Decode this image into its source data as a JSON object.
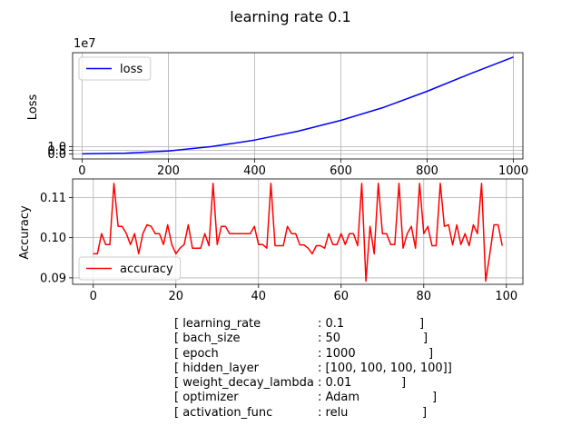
{
  "figure": {
    "title": "learning rate 0.1"
  },
  "chart_data": [
    {
      "type": "line",
      "title": "",
      "xlabel": "",
      "ylabel": "Loss",
      "scale_label": "1e7",
      "xlim": [
        -22,
        1022
      ],
      "ylim": [
        -0.7,
        13.9
      ],
      "x_ticks": [
        "0",
        "200",
        "400",
        "600",
        "800",
        "1000"
      ],
      "y_ticks": [
        "0.0",
        "0.5",
        "1.0"
      ],
      "grid": true,
      "legend": "top-left",
      "series": [
        {
          "name": "loss",
          "color": "#0000ff",
          "x": [
            0,
            100,
            200,
            300,
            400,
            500,
            600,
            700,
            800,
            900,
            1000
          ],
          "y": [
            0.0,
            0.1,
            0.4,
            1.0,
            1.9,
            3.1,
            4.6,
            6.4,
            8.6,
            11.0,
            13.3
          ]
        }
      ]
    },
    {
      "type": "line",
      "title": "",
      "xlabel": "",
      "ylabel": "Accuracy",
      "xlim": [
        -5,
        104
      ],
      "ylim": [
        0.0884,
        0.1146
      ],
      "x_ticks": [
        "0",
        "20",
        "40",
        "60",
        "80",
        "100"
      ],
      "y_ticks": [
        "0.09",
        "0.10",
        "0.11"
      ],
      "grid": true,
      "legend": "bottom-left",
      "series": [
        {
          "name": "accuracy",
          "color": "#ff0000",
          "x": [
            0,
            1,
            2,
            3,
            4,
            5,
            6,
            7,
            8,
            9,
            10,
            11,
            12,
            13,
            14,
            15,
            16,
            17,
            18,
            19,
            20,
            21,
            22,
            23,
            24,
            25,
            26,
            27,
            28,
            29,
            30,
            31,
            32,
            33,
            34,
            35,
            36,
            37,
            38,
            39,
            40,
            41,
            42,
            43,
            44,
            45,
            46,
            47,
            48,
            49,
            50,
            51,
            52,
            53,
            54,
            55,
            56,
            57,
            58,
            59,
            60,
            61,
            62,
            63,
            64,
            65,
            66,
            67,
            68,
            69,
            70,
            71,
            72,
            73,
            74,
            75,
            76,
            77,
            78,
            79,
            80,
            81,
            82,
            83,
            84,
            85,
            86,
            87,
            88,
            89,
            90,
            91,
            92,
            93,
            94,
            95,
            96,
            97,
            98,
            99
          ],
          "y": [
            0.096,
            0.096,
            0.101,
            0.0983,
            0.0983,
            0.1135,
            0.1028,
            0.1028,
            0.101,
            0.0983,
            0.101,
            0.096,
            0.101,
            0.1032,
            0.1028,
            0.101,
            0.101,
            0.0983,
            0.1032,
            0.0983,
            0.096,
            0.0974,
            0.0983,
            0.1032,
            0.0974,
            0.0974,
            0.0974,
            0.101,
            0.098,
            0.1135,
            0.0983,
            0.1028,
            0.1028,
            0.101,
            0.101,
            0.101,
            0.101,
            0.101,
            0.101,
            0.1028,
            0.0983,
            0.0983,
            0.0974,
            0.1135,
            0.098,
            0.098,
            0.098,
            0.1028,
            0.101,
            0.101,
            0.0982,
            0.0982,
            0.0974,
            0.096,
            0.098,
            0.098,
            0.0974,
            0.101,
            0.0983,
            0.0983,
            0.101,
            0.0983,
            0.101,
            0.101,
            0.098,
            0.1135,
            0.0892,
            0.1028,
            0.096,
            0.1135,
            0.101,
            0.101,
            0.0983,
            0.0983,
            0.1135,
            0.0974,
            0.101,
            0.1028,
            0.0974,
            0.1135,
            0.101,
            0.1028,
            0.098,
            0.098,
            0.1135,
            0.1028,
            0.1032,
            0.0982,
            0.1032,
            0.0983,
            0.101,
            0.098,
            0.1032,
            0.101,
            0.1135,
            0.0892,
            0.096,
            0.1032,
            0.1032,
            0.098
          ]
        }
      ]
    }
  ],
  "params": [
    [
      "[ learning_rate",
      ": 0.1",
      "]"
    ],
    [
      "[ bach_size",
      ": 50",
      "]"
    ],
    [
      "[ epoch",
      ": 1000",
      "]"
    ],
    [
      "[ hidden_layer",
      ": [100, 100, 100, 100]",
      "]"
    ],
    [
      "[ weight_decay_lambda",
      ": 0.01",
      "]"
    ],
    [
      "[ optimizer",
      ": Adam",
      "]"
    ],
    [
      "[ activation_func",
      ": relu",
      "]"
    ]
  ]
}
